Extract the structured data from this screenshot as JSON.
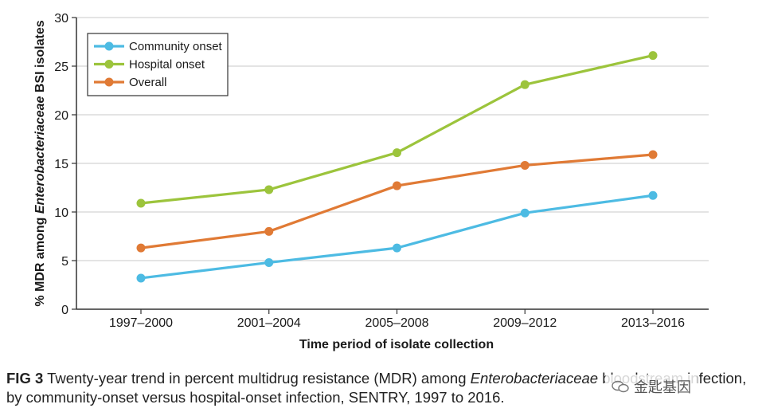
{
  "chart_data": {
    "type": "line",
    "categories": [
      "1997–2000",
      "2001–2004",
      "2005–2008",
      "2009–2012",
      "2013–2016"
    ],
    "series": [
      {
        "name": "Community onset",
        "values": [
          3.2,
          4.8,
          6.3,
          9.9,
          11.7
        ],
        "color": "#4dbbe3"
      },
      {
        "name": "Hospital onset",
        "values": [
          10.9,
          12.3,
          16.1,
          23.1,
          26.1
        ],
        "color": "#9cc43c"
      },
      {
        "name": "Overall",
        "values": [
          6.3,
          8.0,
          12.7,
          14.8,
          15.9
        ],
        "color": "#e07a35"
      }
    ],
    "xlabel": "Time period of isolate collection",
    "ylabel": "% MDR among Enterobacteriaceae BSI isolates",
    "ylabel_plain_before": "% MDR among ",
    "ylabel_italic": "Enterobacteriaceae",
    "ylabel_plain_after": " BSI isolates",
    "ylim": [
      0,
      30
    ],
    "yticks": [
      0,
      5,
      10,
      15,
      20,
      25,
      30
    ],
    "grid": true,
    "legend_position": "top-left"
  },
  "caption": {
    "label": "FIG 3",
    "text_before": " Twenty-year trend in percent multidrug resistance (MDR) among ",
    "text_italic": "Enterobacteriaceae",
    "text_after": " bloodstream infection, by community-onset versus hospital-onset infection, SENTRY, 1997 to 2016."
  },
  "watermark": {
    "text": "金匙基因",
    "icon": "wechat-icon"
  }
}
